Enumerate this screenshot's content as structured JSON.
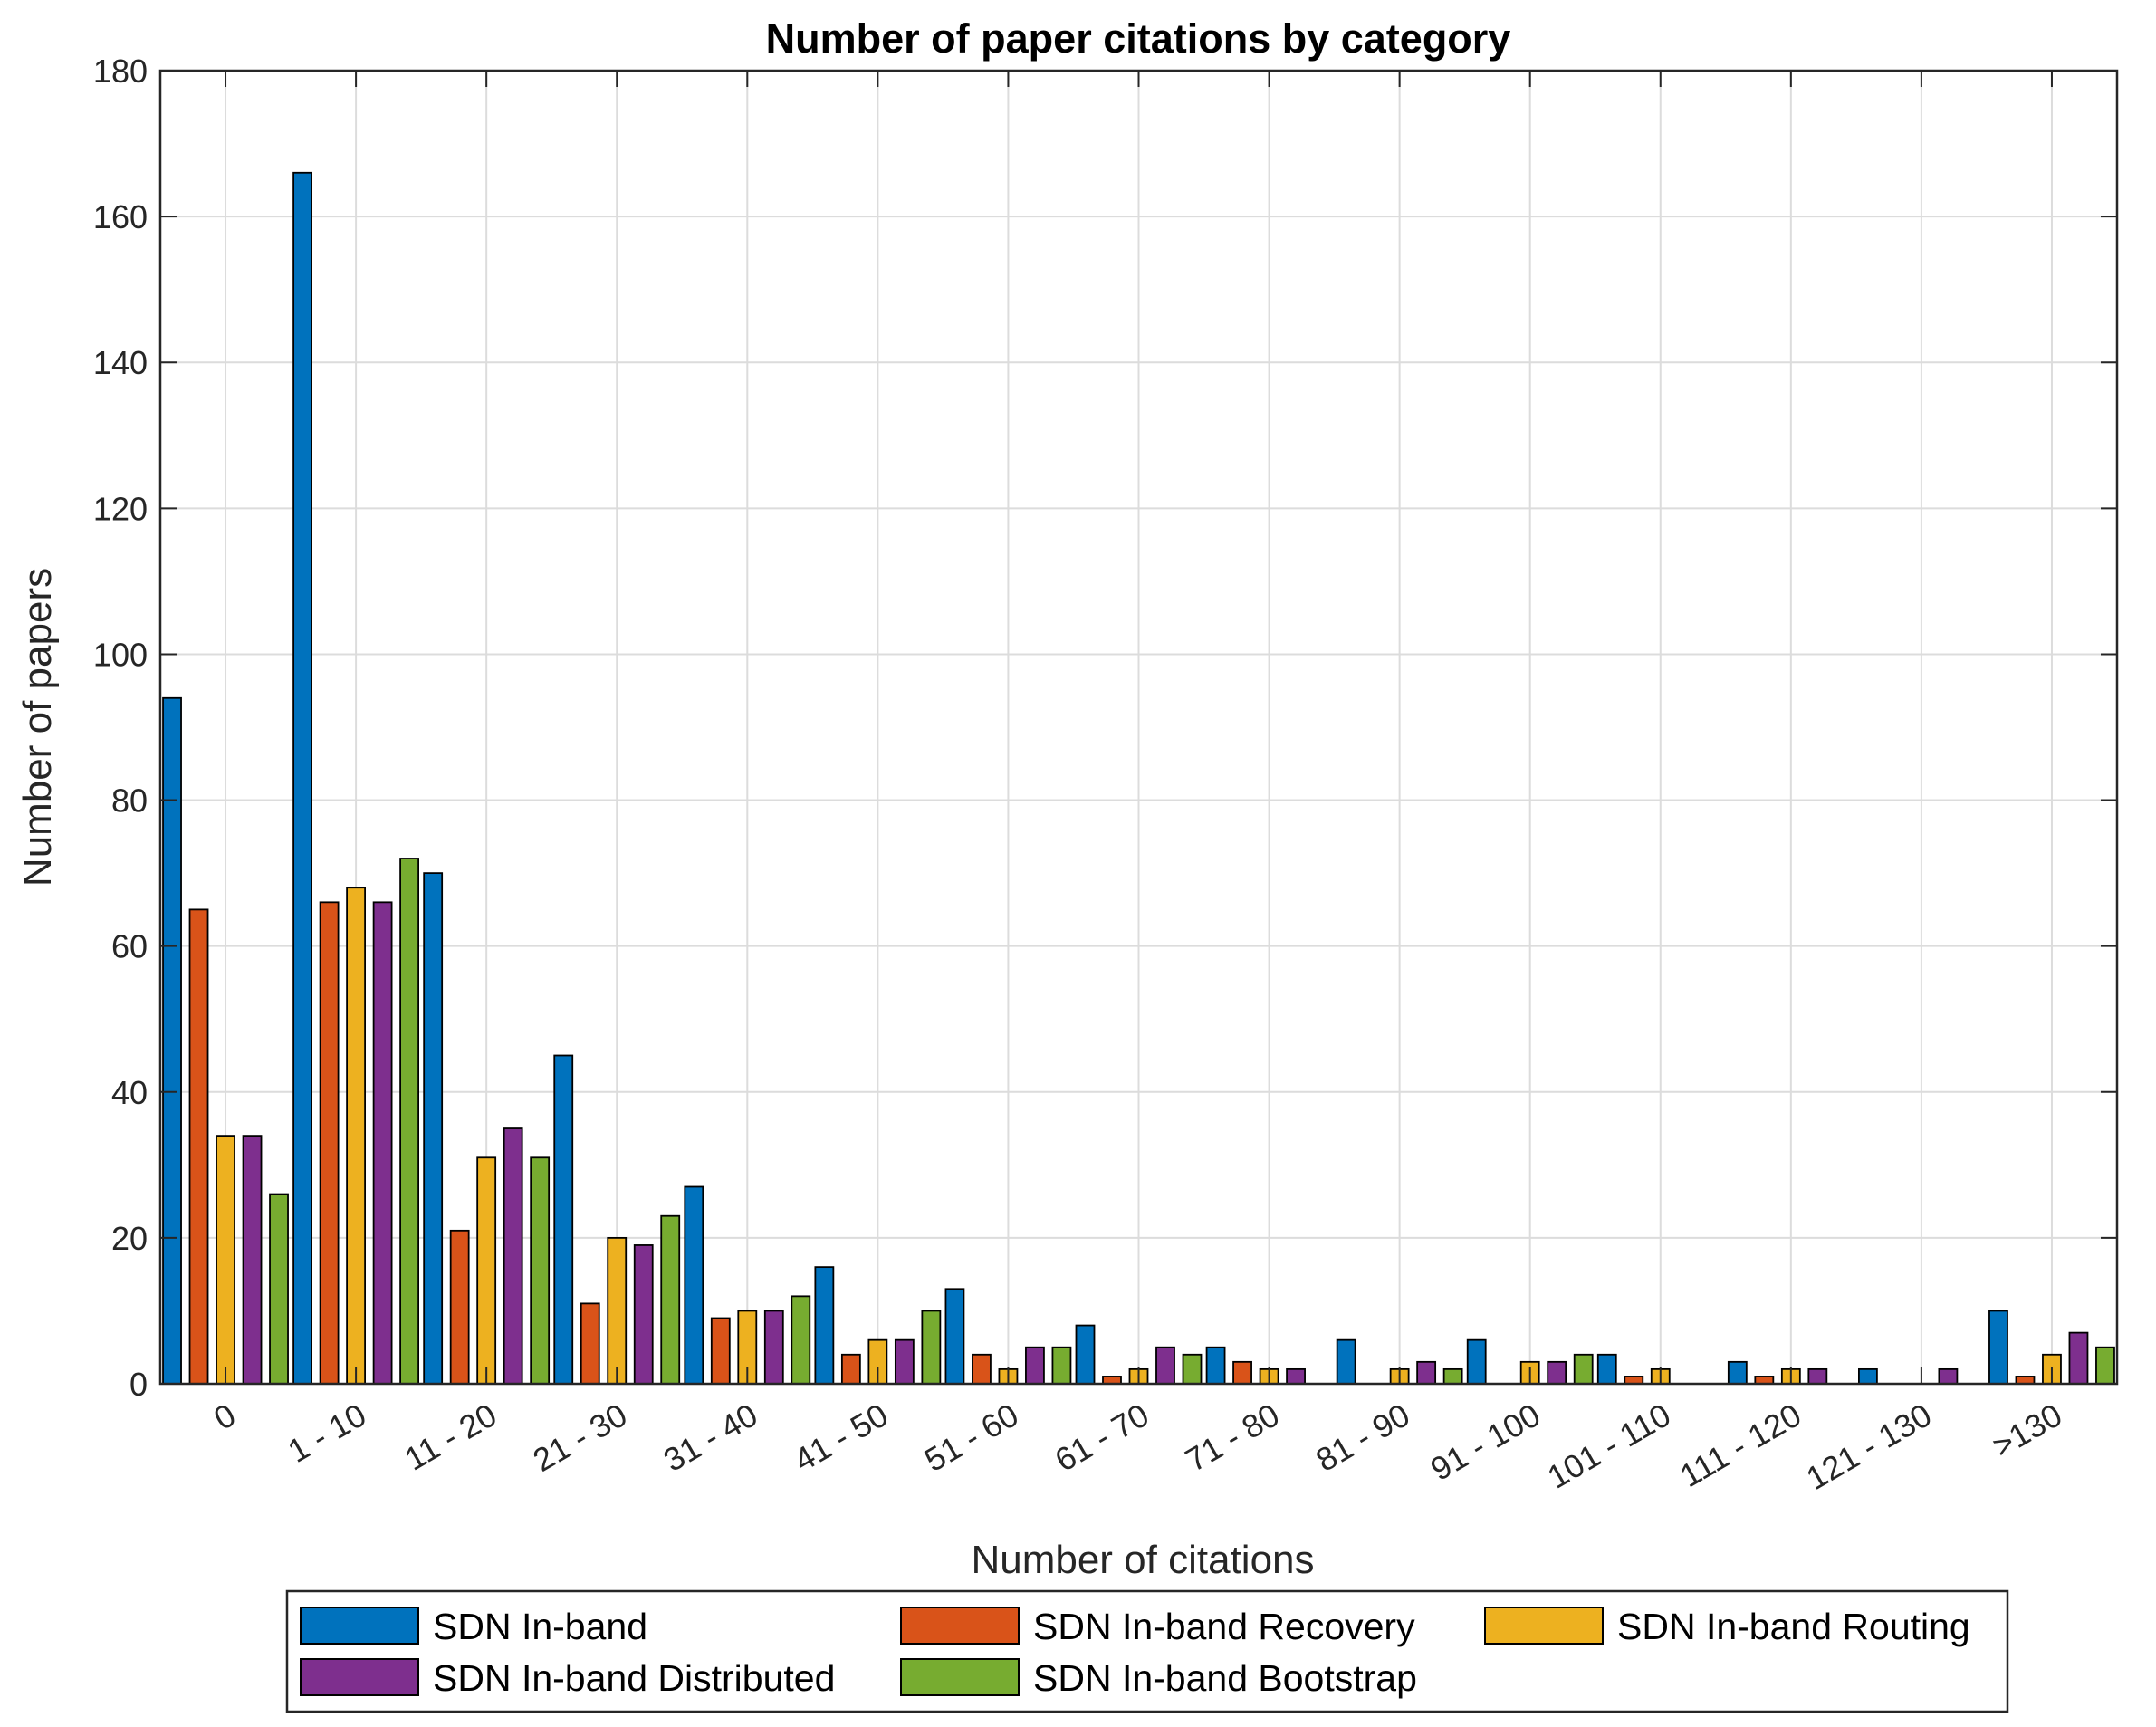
{
  "chart_data": {
    "type": "bar",
    "title": "Number of paper citations by category",
    "xlabel": "Number of citations",
    "ylabel": "Number of papers",
    "ylim": [
      0,
      180
    ],
    "yticks": [
      "0",
      "20",
      "40",
      "60",
      "80",
      "100",
      "120",
      "140",
      "160",
      "180"
    ],
    "grid": true,
    "legend_placement": "bottom",
    "categories": [
      "0",
      "1 - 10",
      "11 - 20",
      "21 - 30",
      "31 - 40",
      "41 - 50",
      "51 - 60",
      "61 - 70",
      "71 - 80",
      "81 - 90",
      "91 - 100",
      "101 - 110",
      "111 - 120",
      "121 - 130",
      ">130"
    ],
    "series": [
      {
        "name": "SDN In-band",
        "color": "#0072BD",
        "values": [
          94,
          166,
          70,
          45,
          27,
          16,
          13,
          8,
          5,
          6,
          6,
          4,
          3,
          2,
          10
        ]
      },
      {
        "name": "SDN In-band Recovery",
        "color": "#D95319",
        "values": [
          65,
          66,
          21,
          11,
          9,
          4,
          4,
          1,
          3,
          0,
          0,
          1,
          1,
          0,
          1
        ]
      },
      {
        "name": "SDN In-band Routing",
        "color": "#EDB120",
        "values": [
          34,
          68,
          31,
          20,
          10,
          6,
          2,
          2,
          2,
          2,
          3,
          2,
          2,
          0,
          4
        ]
      },
      {
        "name": "SDN In-band Distributed",
        "color": "#7E2F8E",
        "values": [
          34,
          66,
          35,
          19,
          10,
          6,
          5,
          5,
          2,
          3,
          3,
          0,
          2,
          2,
          7
        ]
      },
      {
        "name": "SDN In-band Bootstrap",
        "color": "#77AC30",
        "values": [
          26,
          72,
          31,
          23,
          12,
          10,
          5,
          4,
          0,
          2,
          4,
          0,
          0,
          0,
          5
        ]
      }
    ]
  }
}
